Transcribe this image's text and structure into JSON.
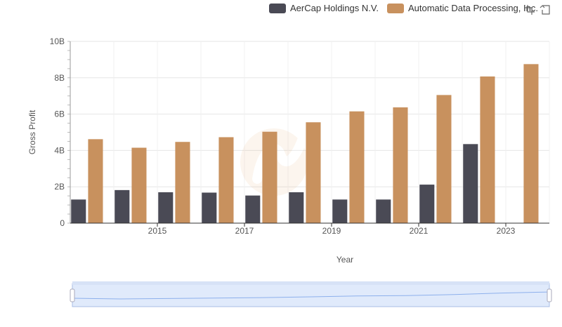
{
  "legend": {
    "items": [
      {
        "label": "AerCap Holdings N.V.",
        "color": "#4a4a55"
      },
      {
        "label": "Automatic Data Processing, Inc.",
        "color": "#c8915e"
      }
    ]
  },
  "toolbar": {
    "icons": [
      "zoom-select-icon",
      "zoom-reset-icon"
    ]
  },
  "chart_data": {
    "type": "bar",
    "categories": [
      "2014",
      "2015",
      "2016",
      "2017",
      "2018",
      "2019",
      "2020",
      "2021",
      "2022",
      "2023",
      "2024"
    ],
    "x_tick_labels": [
      "2015",
      "2017",
      "2019",
      "2021",
      "2023"
    ],
    "y_tick_labels": [
      "0",
      "2B",
      "4B",
      "6B",
      "8B",
      "10B"
    ],
    "y_ticks": [
      0,
      2,
      4,
      6,
      8,
      10
    ],
    "ylim": [
      0,
      10
    ],
    "xlabel": "Year",
    "ylabel": "Gross Profit",
    "grid": true,
    "legend_position": "top-right",
    "series": [
      {
        "name": "AerCap Holdings N.V.",
        "color": "#4a4a55",
        "values": [
          1.3,
          1.82,
          1.7,
          1.68,
          1.52,
          1.7,
          1.3,
          1.3,
          2.12,
          4.35,
          null
        ]
      },
      {
        "name": "Automatic Data Processing, Inc.",
        "color": "#c8915e",
        "values": [
          4.62,
          4.15,
          4.47,
          4.73,
          5.03,
          5.55,
          6.15,
          6.37,
          7.05,
          8.07,
          8.75
        ]
      }
    ],
    "value_unit": "billions"
  }
}
